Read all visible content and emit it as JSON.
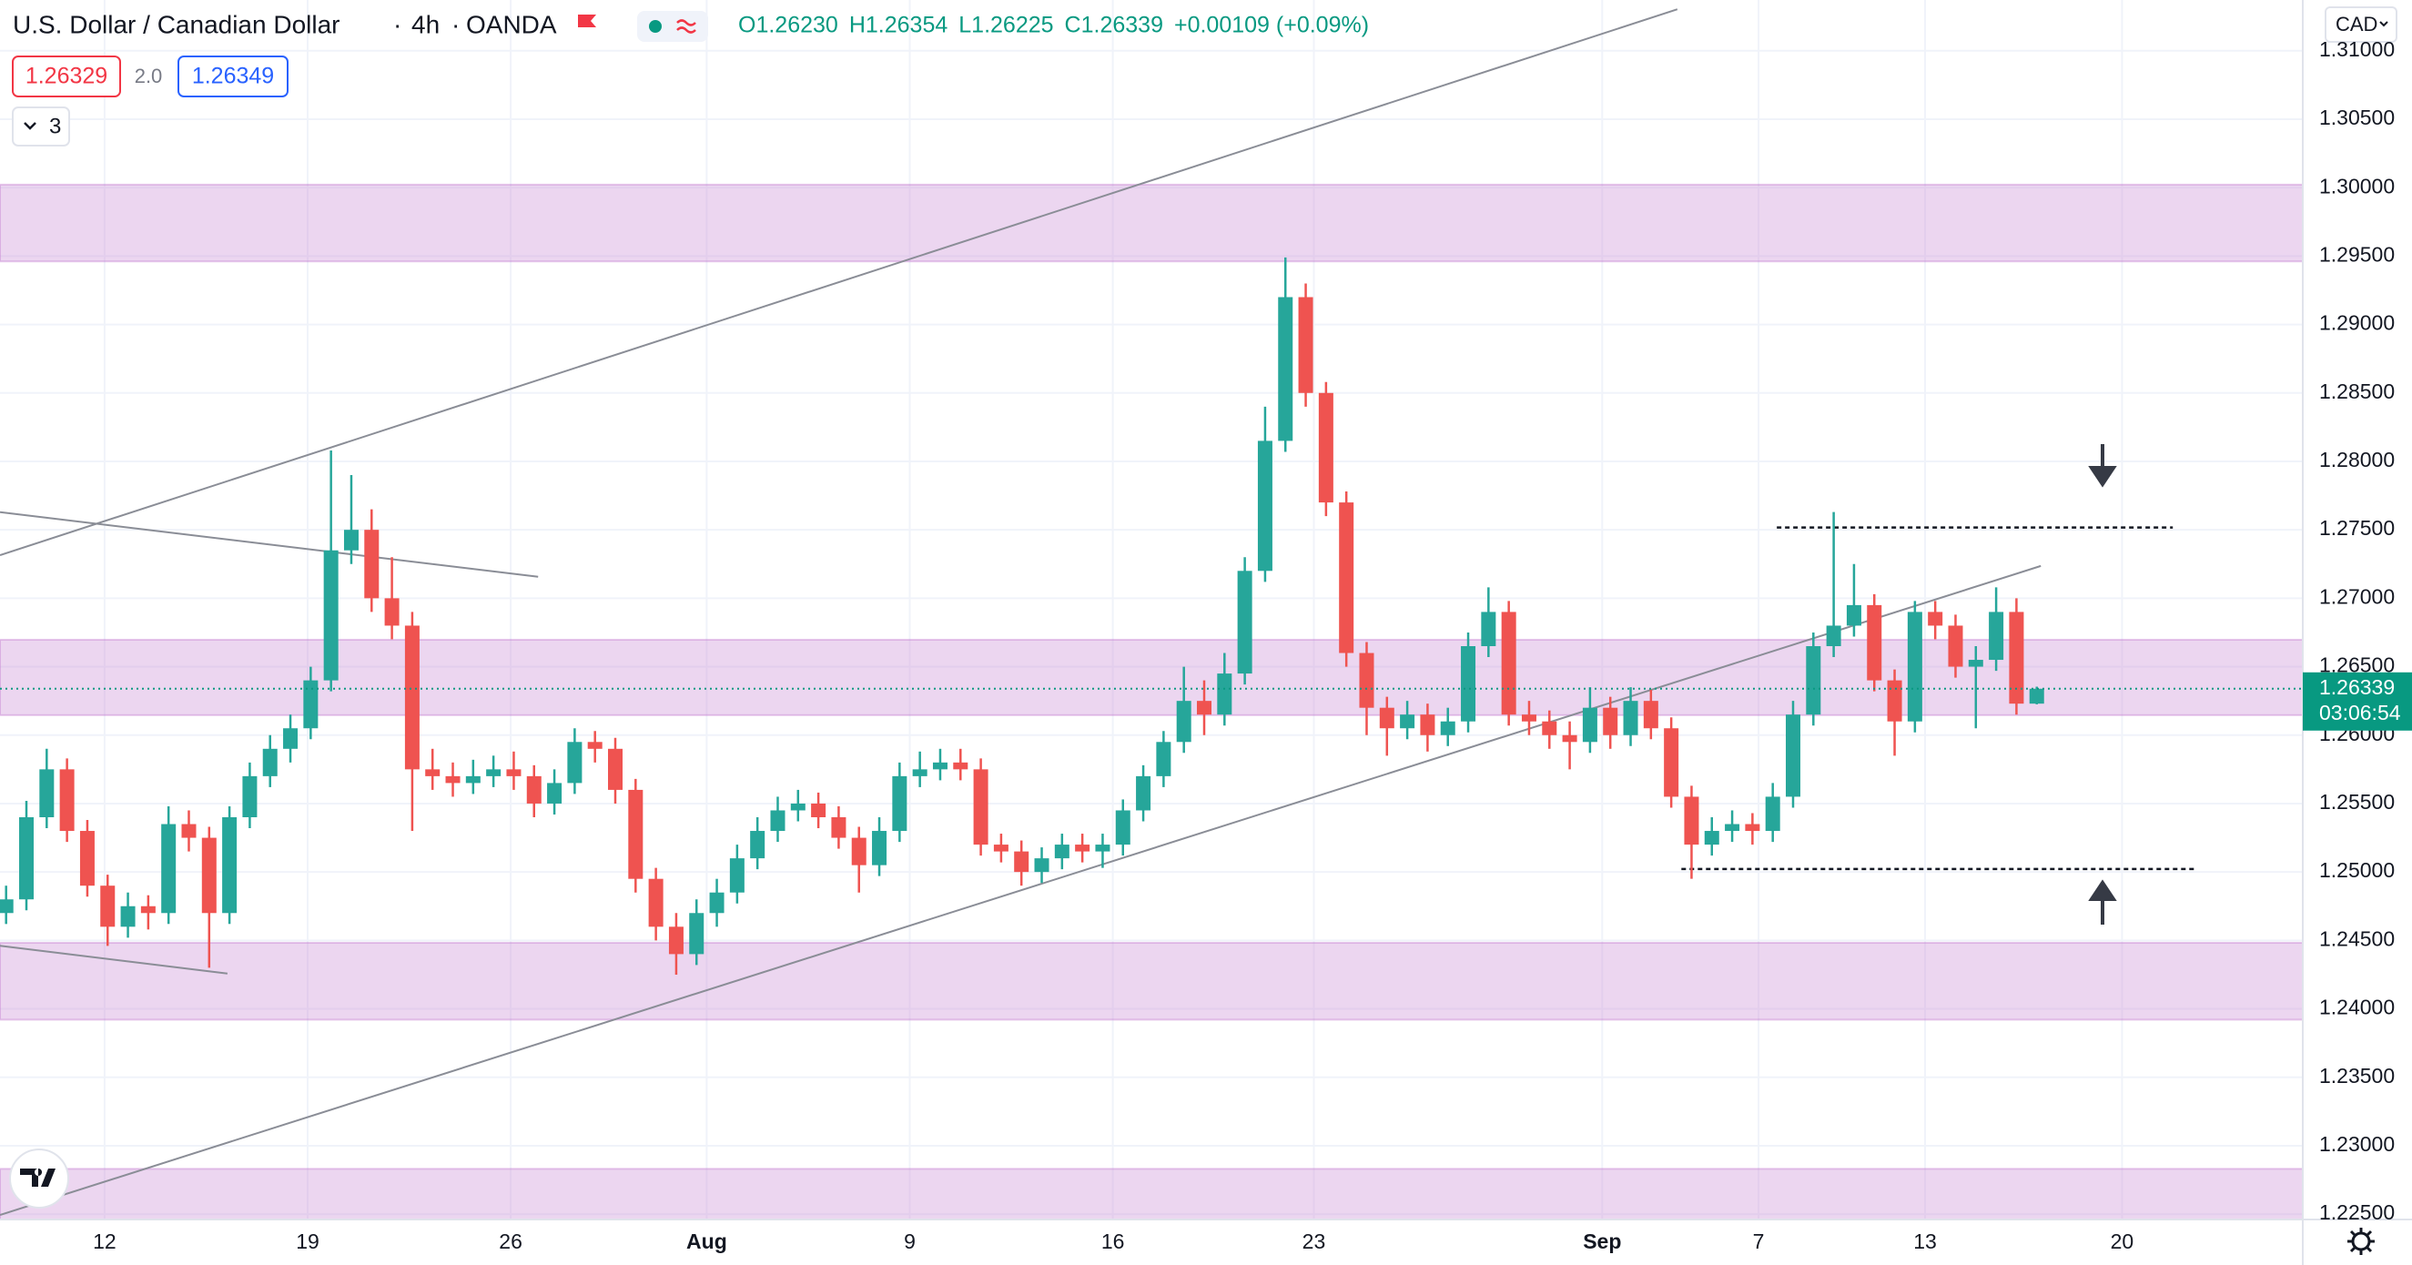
{
  "header": {
    "symbol": "U.S. Dollar / Canadian Dollar",
    "interval": "4h",
    "exchange": "OANDA",
    "ohlc": [
      "O1.26230",
      "H1.26354",
      "L1.26225",
      "C1.26339",
      "+0.00109 (+0.09%)"
    ],
    "sell": "1.26329",
    "spread": "2.0",
    "buy": "1.26349",
    "indicators": "3",
    "currency": "CAD"
  },
  "chart_data": {
    "type": "candlestick",
    "up_color": "#26a69a",
    "down_color": "#ef5350",
    "grid": true,
    "open": [
      1.247,
      1.248,
      1.254,
      1.2575,
      1.253,
      1.249,
      1.246,
      1.2475,
      1.247,
      1.2535,
      1.2525,
      1.247,
      1.254,
      1.257,
      1.259,
      1.2605,
      1.264,
      1.2735,
      1.275,
      1.27,
      1.268,
      1.2575,
      1.257,
      1.2565,
      1.257,
      1.2575,
      1.257,
      1.255,
      1.2565,
      1.2595,
      1.259,
      1.256,
      1.2495,
      1.246,
      1.244,
      1.247,
      1.2485,
      1.251,
      1.253,
      1.2545,
      1.255,
      1.254,
      1.2525,
      1.2505,
      1.253,
      1.257,
      1.2575,
      1.258,
      1.2575,
      1.252,
      1.2515,
      1.25,
      1.251,
      1.252,
      1.2515,
      1.252,
      1.2545,
      1.257,
      1.2595,
      1.2625,
      1.2615,
      1.2645,
      1.272,
      1.2815,
      1.292,
      1.285,
      1.277,
      1.266,
      1.262,
      1.2605,
      1.2615,
      1.26,
      1.261,
      1.2665,
      1.269,
      1.2615,
      1.261,
      1.26,
      1.2595,
      1.262,
      1.26,
      1.2625,
      1.2605,
      1.2555,
      1.252,
      1.253,
      1.2535,
      1.253,
      1.2555,
      1.2615,
      1.2665,
      1.268,
      1.2695,
      1.264,
      1.261,
      1.269,
      1.268,
      1.265,
      1.2655,
      1.269,
      1.2623
    ],
    "high": [
      1.249,
      1.2552,
      1.259,
      1.2583,
      1.2538,
      1.2498,
      1.2485,
      1.2483,
      1.2548,
      1.2545,
      1.2533,
      1.2548,
      1.258,
      1.26,
      1.2615,
      1.265,
      1.2808,
      1.279,
      1.2765,
      1.273,
      1.269,
      1.259,
      1.258,
      1.2582,
      1.2585,
      1.2588,
      1.2578,
      1.2575,
      1.2605,
      1.2603,
      1.2598,
      1.2568,
      1.2503,
      1.247,
      1.248,
      1.2495,
      1.252,
      1.254,
      1.2555,
      1.256,
      1.2558,
      1.2548,
      1.2533,
      1.254,
      1.258,
      1.2588,
      1.259,
      1.259,
      1.2583,
      1.2528,
      1.2523,
      1.2518,
      1.2528,
      1.2528,
      1.2528,
      1.2553,
      1.2578,
      1.2603,
      1.265,
      1.264,
      1.266,
      1.273,
      1.284,
      1.2949,
      1.293,
      1.2858,
      1.2778,
      1.2668,
      1.2628,
      1.2625,
      1.2623,
      1.262,
      1.2675,
      1.2708,
      1.2698,
      1.2625,
      1.2618,
      1.261,
      1.2635,
      1.2628,
      1.2635,
      1.2633,
      1.2613,
      1.2563,
      1.254,
      1.2545,
      1.2543,
      1.2565,
      1.2625,
      1.2675,
      1.2763,
      1.2725,
      1.2703,
      1.2648,
      1.2698,
      1.2698,
      1.2688,
      1.2665,
      1.2708,
      1.27,
      1.26354
    ],
    "low": [
      1.2462,
      1.2472,
      1.2532,
      1.2522,
      1.2482,
      1.2446,
      1.2452,
      1.2458,
      1.2462,
      1.2515,
      1.243,
      1.2462,
      1.2532,
      1.2562,
      1.258,
      1.2597,
      1.2632,
      1.2725,
      1.269,
      1.267,
      1.253,
      1.256,
      1.2555,
      1.2557,
      1.2562,
      1.256,
      1.254,
      1.2542,
      1.2557,
      1.258,
      1.255,
      1.2485,
      1.245,
      1.2425,
      1.2432,
      1.246,
      1.2477,
      1.2502,
      1.2522,
      1.2537,
      1.2532,
      1.2517,
      1.2485,
      1.2497,
      1.2522,
      1.2562,
      1.2567,
      1.2567,
      1.2512,
      1.2507,
      1.249,
      1.2492,
      1.2502,
      1.2507,
      1.2503,
      1.2512,
      1.2537,
      1.2562,
      1.2587,
      1.26,
      1.2607,
      1.2637,
      1.2712,
      1.2807,
      1.284,
      1.276,
      1.265,
      1.26,
      1.2585,
      1.2597,
      1.2588,
      1.2592,
      1.2602,
      1.2657,
      1.2607,
      1.26,
      1.259,
      1.2575,
      1.2587,
      1.259,
      1.2592,
      1.2597,
      1.2547,
      1.2495,
      1.2512,
      1.2522,
      1.252,
      1.2522,
      1.2547,
      1.2607,
      1.2657,
      1.2672,
      1.2632,
      1.2585,
      1.2602,
      1.267,
      1.2642,
      1.2605,
      1.2647,
      1.2615,
      1.26225
    ],
    "close": [
      1.248,
      1.254,
      1.2575,
      1.253,
      1.249,
      1.246,
      1.2475,
      1.247,
      1.2535,
      1.2525,
      1.247,
      1.254,
      1.257,
      1.259,
      1.2605,
      1.264,
      1.2735,
      1.275,
      1.27,
      1.268,
      1.2575,
      1.257,
      1.2565,
      1.257,
      1.2575,
      1.257,
      1.255,
      1.2565,
      1.2595,
      1.259,
      1.256,
      1.2495,
      1.246,
      1.244,
      1.247,
      1.2485,
      1.251,
      1.253,
      1.2545,
      1.255,
      1.254,
      1.2525,
      1.2505,
      1.253,
      1.257,
      1.2575,
      1.258,
      1.2575,
      1.252,
      1.2515,
      1.25,
      1.251,
      1.252,
      1.2515,
      1.252,
      1.2545,
      1.257,
      1.2595,
      1.2625,
      1.2615,
      1.2645,
      1.272,
      1.2815,
      1.292,
      1.285,
      1.277,
      1.266,
      1.262,
      1.2605,
      1.2615,
      1.26,
      1.261,
      1.2665,
      1.269,
      1.2615,
      1.261,
      1.26,
      1.2595,
      1.262,
      1.26,
      1.2625,
      1.2605,
      1.2555,
      1.252,
      1.253,
      1.2535,
      1.253,
      1.2555,
      1.2615,
      1.2665,
      1.268,
      1.2695,
      1.264,
      1.261,
      1.269,
      1.268,
      1.265,
      1.2655,
      1.269,
      1.2623,
      1.26339
    ],
    "xlim": [
      -0.3,
      113.1
    ],
    "xticks": [
      {
        "value": 4.85,
        "label": "12"
      },
      {
        "value": 14.85,
        "label": "19"
      },
      {
        "value": 24.85,
        "label": "26"
      },
      {
        "value": 34.5,
        "label": "Aug"
      },
      {
        "value": 44.5,
        "label": "9"
      },
      {
        "value": 54.5,
        "label": "16"
      },
      {
        "value": 64.4,
        "label": "23"
      },
      {
        "value": 78.6,
        "label": "Sep"
      },
      {
        "value": 86.3,
        "label": "7"
      },
      {
        "value": 94.5,
        "label": "13"
      },
      {
        "value": 104.2,
        "label": "20"
      }
    ],
    "ylim": [
      1.22461,
      1.31371
    ],
    "yticks": [
      {
        "value": 1.225,
        "label": "1.22500"
      },
      {
        "value": 1.23,
        "label": "1.23000"
      },
      {
        "value": 1.235,
        "label": "1.23500"
      },
      {
        "value": 1.24,
        "label": "1.24000"
      },
      {
        "value": 1.245,
        "label": "1.24500"
      },
      {
        "value": 1.25,
        "label": "1.25000"
      },
      {
        "value": 1.255,
        "label": "1.25500"
      },
      {
        "value": 1.26,
        "label": "1.26000"
      },
      {
        "value": 1.265,
        "label": "1.26500"
      },
      {
        "value": 1.27,
        "label": "1.27000"
      },
      {
        "value": 1.275,
        "label": "1.27500"
      },
      {
        "value": 1.28,
        "label": "1.28000"
      },
      {
        "value": 1.285,
        "label": "1.28500"
      },
      {
        "value": 1.29,
        "label": "1.29000"
      },
      {
        "value": 1.295,
        "label": "1.29500"
      },
      {
        "value": 1.3,
        "label": "1.30000"
      },
      {
        "value": 1.305,
        "label": "1.30500"
      },
      {
        "value": 1.31,
        "label": "1.31000"
      }
    ],
    "zones": [
      {
        "low": 1.29461,
        "high": 1.30022
      },
      {
        "low": 1.26146,
        "high": 1.26697
      },
      {
        "low": 1.23921,
        "high": 1.24483
      },
      {
        "low": 1.22461,
        "high": 1.22831
      }
    ],
    "trendlines": [
      {
        "x": [
          -0.3,
          82.3
        ],
        "y": [
          1.27315,
          1.31303
        ]
      },
      {
        "x": [
          -0.3,
          100.2
        ],
        "y": [
          1.22494,
          1.27236
        ]
      },
      {
        "x": [
          -0.3,
          26.2
        ],
        "y": [
          1.27629,
          1.27157
        ]
      },
      {
        "x": [
          -0.3,
          10.9
        ],
        "y": [
          1.24461,
          1.24258
        ]
      }
    ],
    "levels": [
      {
        "x": [
          87.2,
          106.7
        ],
        "y": 1.27517
      },
      {
        "x": [
          82.5,
          107.8
        ],
        "y": 1.25022
      }
    ],
    "last_price": {
      "value": 1.26339,
      "label": "1.26339"
    },
    "countdown": "03:06:54"
  }
}
